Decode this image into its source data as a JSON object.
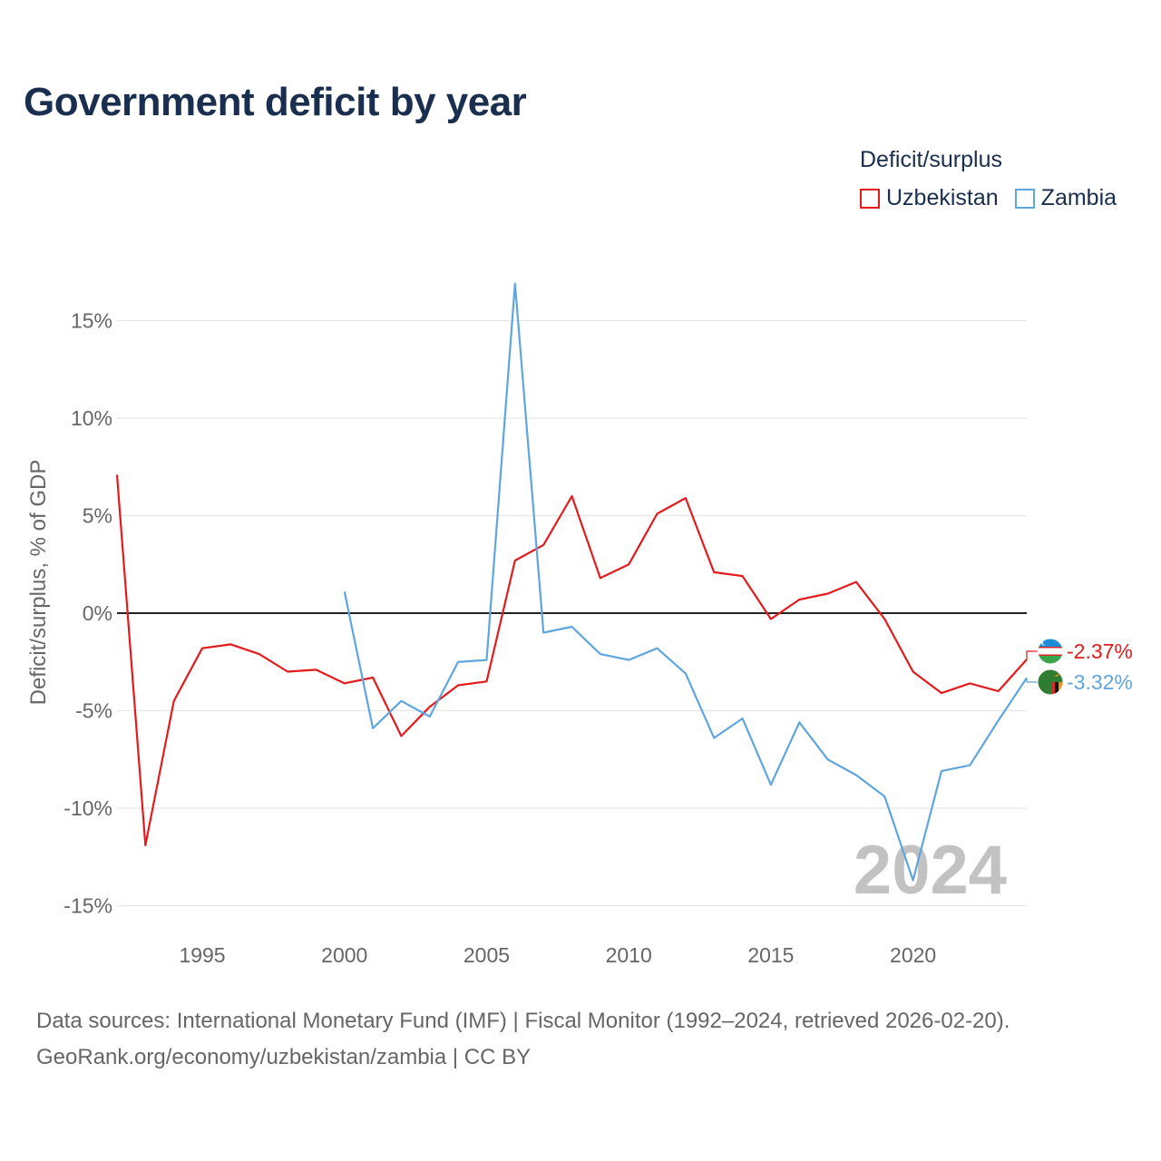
{
  "title": "Government deficit by year",
  "legend": {
    "title": "Deficit/surplus",
    "items": [
      {
        "label": "Uzbekistan",
        "color": "#e41a1c"
      },
      {
        "label": "Zambia",
        "color": "#5fa5e0"
      }
    ]
  },
  "footer": {
    "line1": "Data sources: International Monetary Fund (IMF) | Fiscal Monitor (1992–2024, retrieved 2026-02-20).",
    "line2": "GeoRank.org/economy/uzbekistan/zambia | CC BY"
  },
  "chart_data": {
    "type": "line",
    "title": "Government deficit by year",
    "xlabel": "",
    "ylabel": "Deficit/surplus, % of GDP",
    "xlim": [
      1992,
      2024
    ],
    "ylim": [
      -15,
      15
    ],
    "xticks": [
      1995,
      2000,
      2005,
      2010,
      2015,
      2020
    ],
    "xtick_labels": [
      "1995",
      "2000",
      "2005",
      "2010",
      "2015",
      "2020"
    ],
    "yticks": [
      -15,
      -10,
      -5,
      0,
      5,
      10,
      15
    ],
    "ytick_labels": [
      "-15%",
      "-10%",
      "-5%",
      "0%",
      "5%",
      "10%",
      "15%"
    ],
    "grid": true,
    "watermark": "2024",
    "series": [
      {
        "name": "Uzbekistan",
        "color": "#e41a1c",
        "end_label": "-2.37%",
        "flag": "uzbekistan-flag",
        "x": [
          1992,
          1993,
          1994,
          1995,
          1996,
          1997,
          1998,
          1999,
          2000,
          2001,
          2002,
          2003,
          2004,
          2005,
          2006,
          2007,
          2008,
          2009,
          2010,
          2011,
          2012,
          2013,
          2014,
          2015,
          2016,
          2017,
          2018,
          2019,
          2020,
          2021,
          2022,
          2023,
          2024
        ],
        "y": [
          7.1,
          -11.9,
          -4.5,
          -1.8,
          -1.6,
          -2.1,
          -3.0,
          -2.9,
          -3.6,
          -3.3,
          -6.3,
          -4.8,
          -3.7,
          -3.5,
          2.7,
          3.5,
          6.0,
          1.8,
          2.5,
          5.1,
          5.9,
          2.1,
          1.9,
          -0.3,
          0.7,
          1.0,
          1.6,
          -0.3,
          -3.0,
          -4.1,
          -3.6,
          -4.0,
          -2.37
        ]
      },
      {
        "name": "Zambia",
        "color": "#5fa5e0",
        "end_label": "-3.32%",
        "flag": "zambia-flag",
        "x": [
          2000,
          2001,
          2002,
          2003,
          2004,
          2005,
          2006,
          2007,
          2008,
          2009,
          2010,
          2011,
          2012,
          2013,
          2014,
          2015,
          2016,
          2017,
          2018,
          2019,
          2020,
          2021,
          2022,
          2023,
          2024
        ],
        "y": [
          1.1,
          -5.9,
          -4.5,
          -5.3,
          -2.5,
          -2.4,
          16.9,
          -1.0,
          -0.7,
          -2.1,
          -2.4,
          -1.8,
          -3.1,
          -6.4,
          -5.4,
          -8.8,
          -5.6,
          -7.5,
          -8.3,
          -9.4,
          -13.7,
          -8.1,
          -7.8,
          -5.5,
          -3.32
        ]
      }
    ]
  }
}
